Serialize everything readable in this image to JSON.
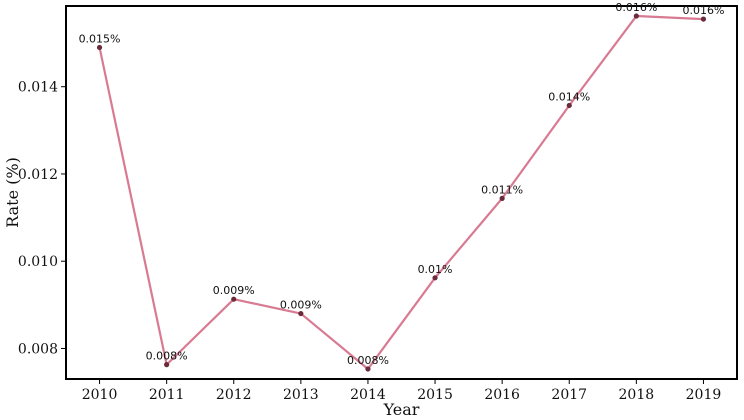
{
  "chart_data": {
    "type": "line",
    "title": "",
    "xlabel": "Year",
    "ylabel": "Rate (%)",
    "x": [
      2010,
      2011,
      2012,
      2013,
      2014,
      2015,
      2016,
      2017,
      2018,
      2019
    ],
    "series": [
      {
        "values": [
          0.0149,
          0.00763,
          0.00913,
          0.0088,
          0.00753,
          0.00962,
          0.01144,
          0.01357,
          0.01562,
          0.01555
        ],
        "labels": [
          "0.015%",
          "0.008%",
          "0.009%",
          "0.009%",
          "0.008%",
          "0.01%",
          "0.011%",
          "0.014%",
          "0.016%",
          "0.016%"
        ],
        "color": "#d97a93",
        "marker_color": "#6b2b3a"
      }
    ],
    "xlim": [
      2009.5,
      2019.5
    ],
    "ylim": [
      0.0073,
      0.01585
    ],
    "yticks": [
      0.008,
      0.01,
      0.012,
      0.014
    ],
    "ytick_labels": [
      "0.008",
      "0.010",
      "0.012",
      "0.014"
    ],
    "xtick_labels": [
      "2010",
      "2011",
      "2012",
      "2013",
      "2014",
      "2015",
      "2016",
      "2017",
      "2018",
      "2019"
    ],
    "grid": false,
    "legend": "none"
  }
}
